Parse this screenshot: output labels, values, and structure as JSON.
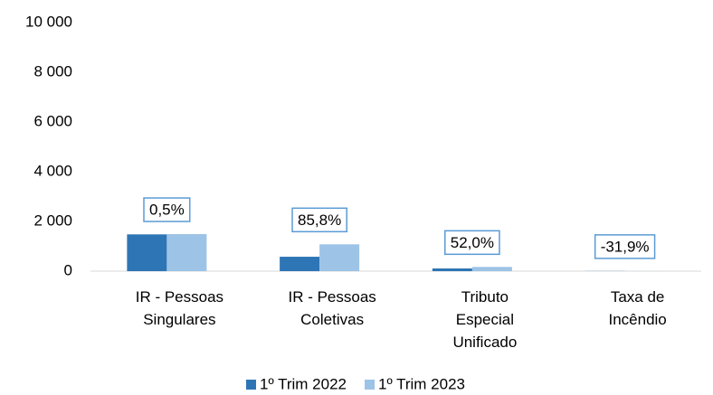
{
  "chart_data": {
    "type": "bar",
    "categories": [
      [
        "IR - Pessoas",
        "Singulares"
      ],
      [
        "IR - Pessoas",
        "Coletivas"
      ],
      [
        "Tributo",
        "Especial",
        "Unificado"
      ],
      [
        "Taxa de",
        "Incêndio"
      ]
    ],
    "series": [
      {
        "name": "1º Trim 2022",
        "color": "#2e75b6",
        "values": [
          1480,
          580,
          110,
          5
        ]
      },
      {
        "name": "1º Trim 2023",
        "color": "#9dc3e6",
        "values": [
          1490,
          1080,
          170,
          3
        ]
      }
    ],
    "annotations": [
      "0,5%",
      "85,8%",
      "52,0%",
      "-31,9%"
    ],
    "ylim": [
      0,
      10000
    ],
    "yticks": [
      {
        "value": 0,
        "label": "0"
      },
      {
        "value": 2000,
        "label": "2 000"
      },
      {
        "value": 4000,
        "label": "4 000"
      },
      {
        "value": 6000,
        "label": "6 000"
      },
      {
        "value": 8000,
        "label": "8 000"
      },
      {
        "value": 10000,
        "label": "10 000"
      }
    ],
    "grid": false,
    "legend": "bottom"
  }
}
